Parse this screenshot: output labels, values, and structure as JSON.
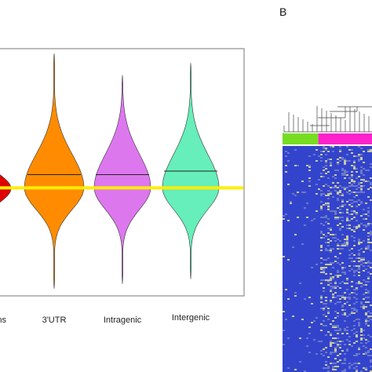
{
  "panel_b_label": "B",
  "chart_data": [
    {
      "type": "violin",
      "categories": [
        "...ns",
        "3'UTR",
        "Intragenic",
        "Intergenic"
      ],
      "colors": [
        "#e00000",
        "#ff8c00",
        "#dd77ee",
        "#66eebb"
      ],
      "medians": [
        0.0,
        0.55,
        0.55,
        0.7
      ],
      "reference_line": {
        "value": 0.0,
        "color": "#ffee00"
      },
      "ylim": [
        -4.5,
        5.8
      ],
      "visible_range_extent": [
        [
          -0.6,
          0.55
        ],
        [
          -4.2,
          5.6
        ],
        [
          -4.0,
          4.7
        ],
        [
          -3.8,
          5.2
        ]
      ],
      "title": "",
      "xlabel": "",
      "ylabel": ""
    },
    {
      "type": "heatmap",
      "column_groups": [
        {
          "color": "#77dd22",
          "fraction": 0.4
        },
        {
          "color": "#ff22cc",
          "fraction": 0.6
        }
      ],
      "low_color": "#3344cc",
      "high_color": "#c8c8a0",
      "dendrogram": true
    }
  ]
}
